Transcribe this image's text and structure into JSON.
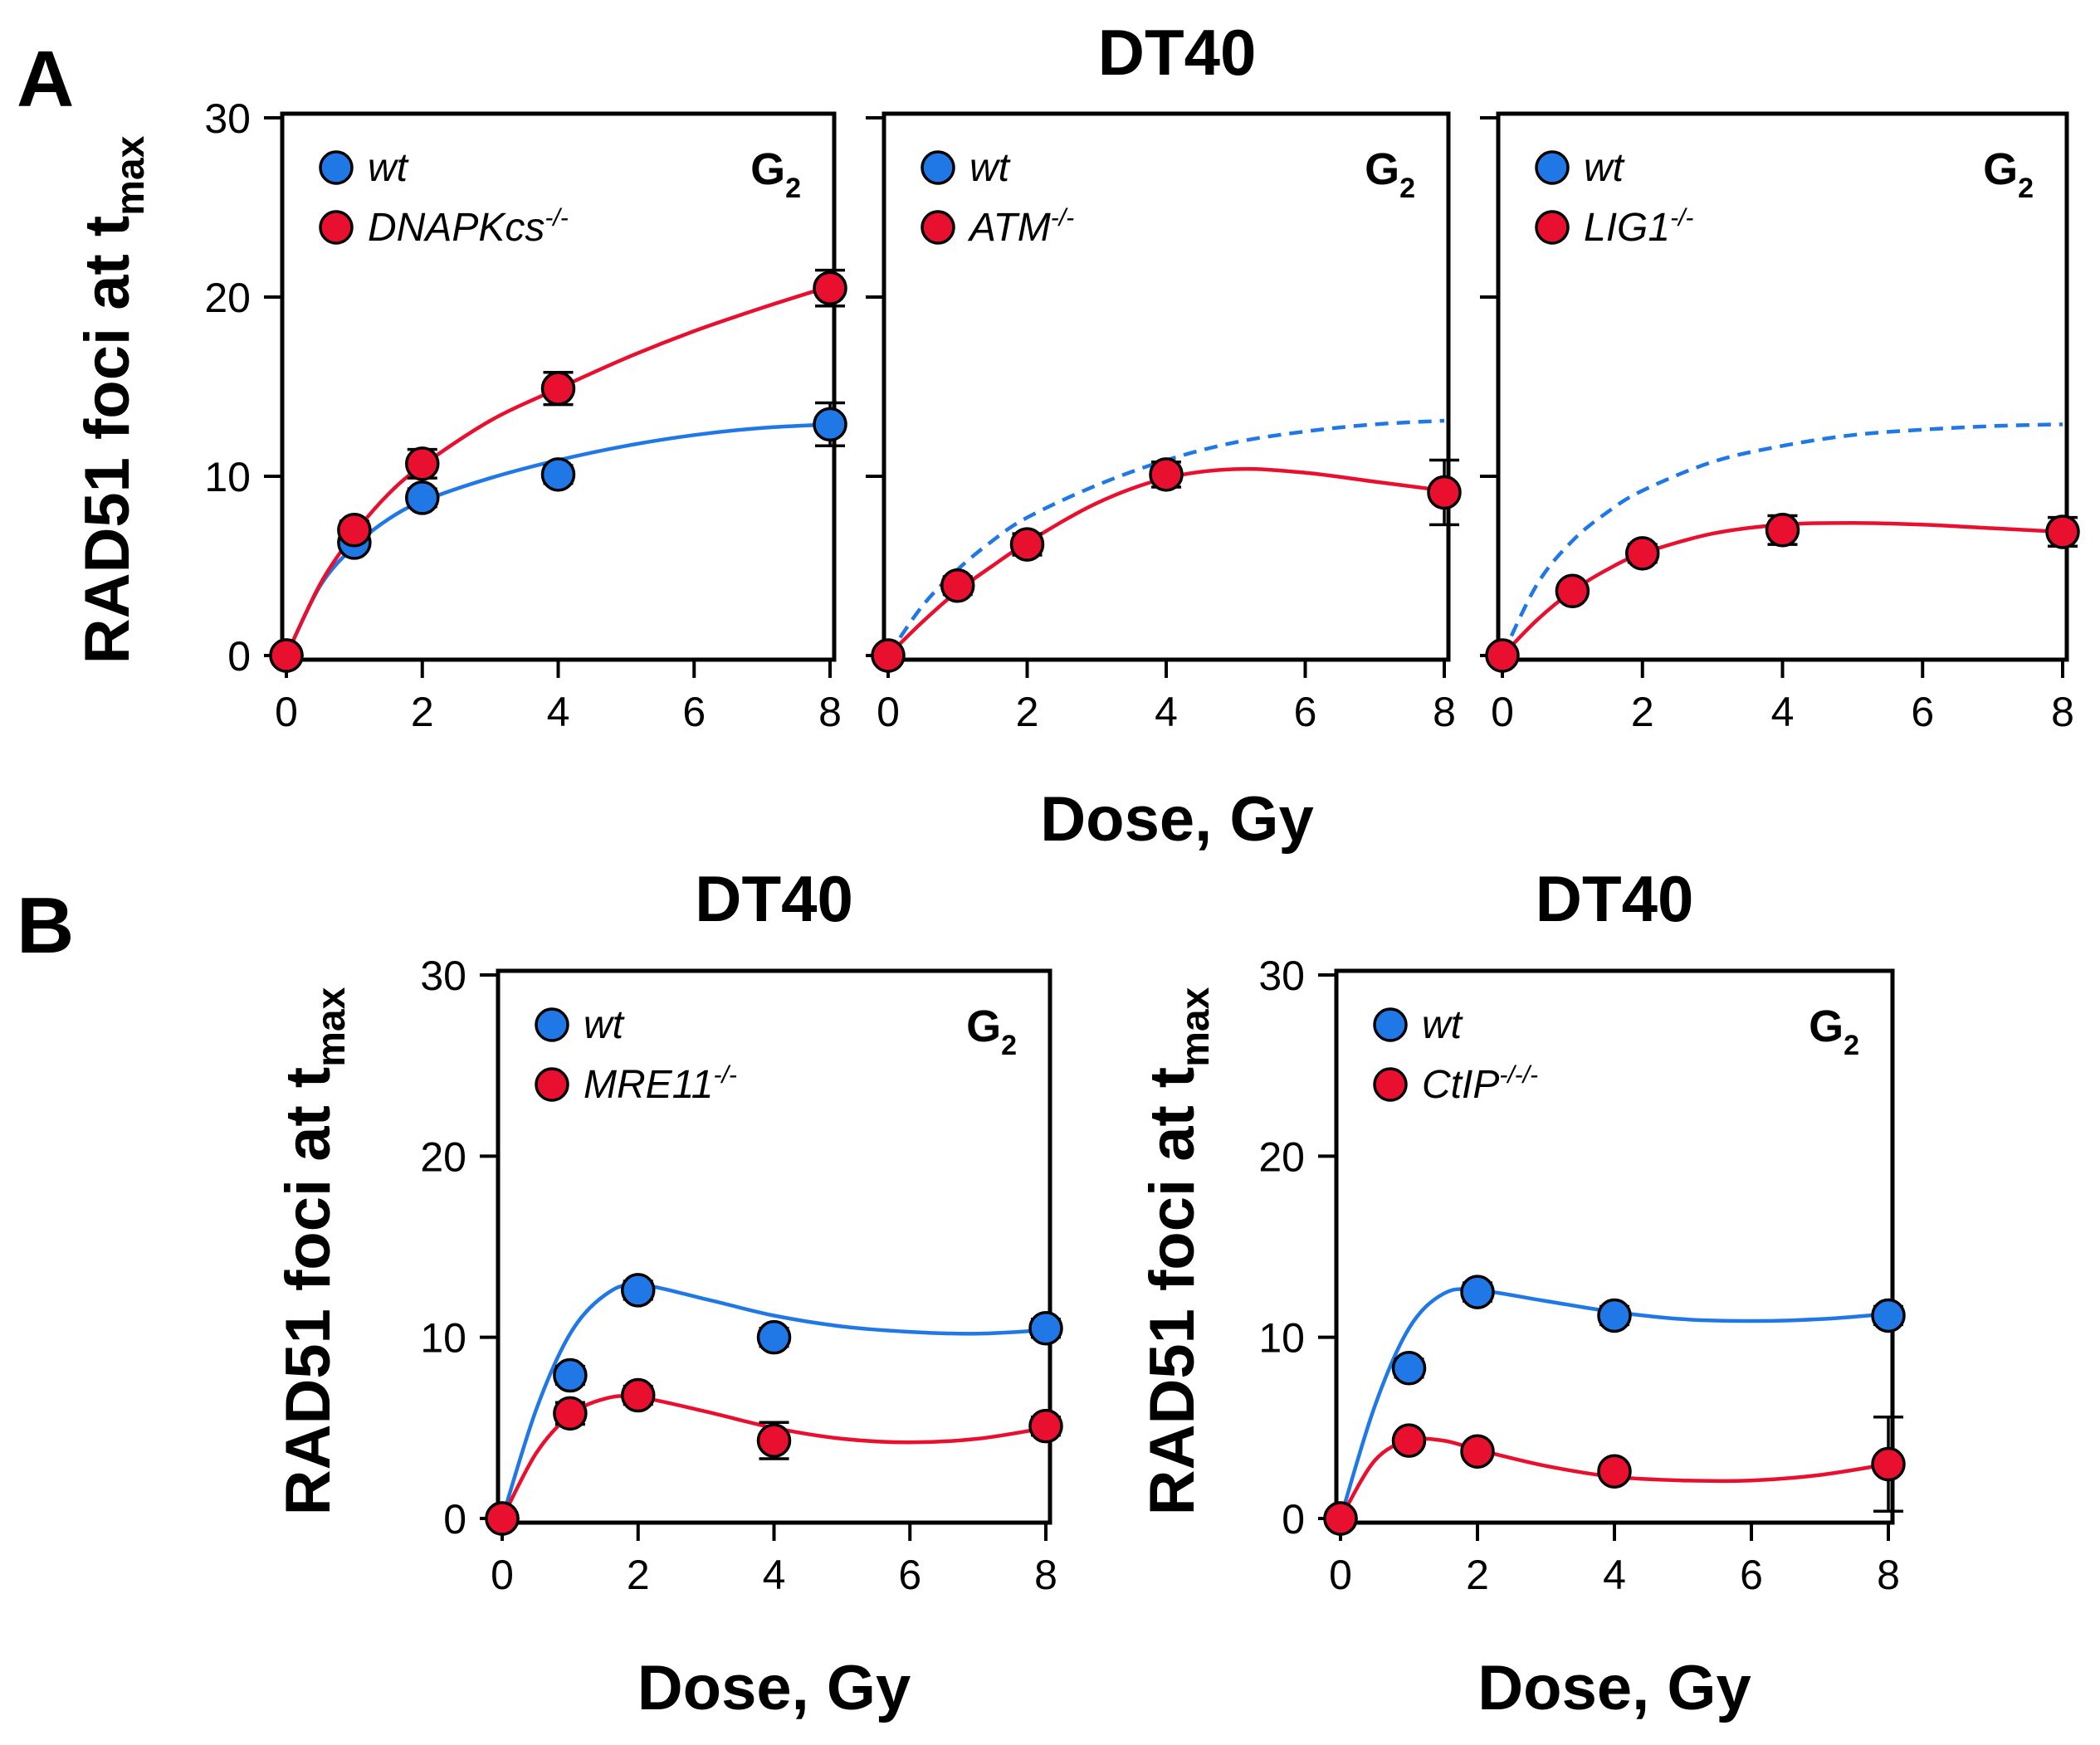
{
  "figure": {
    "panel_A_letter": "A",
    "panel_B_letter": "B",
    "panel_A_title": "DT40",
    "panel_A_xlabel": "Dose, Gy",
    "y_label_main": "RAD51 foci at t",
    "y_label_sub": "max",
    "x_ticks": [
      "0",
      "2",
      "4",
      "6",
      "8"
    ],
    "y_ticks": [
      "0",
      "10",
      "20",
      "30"
    ],
    "colors": {
      "wt": "#1f78e6",
      "mutant": "#e8102e",
      "axis": "#000000"
    }
  },
  "chart_data": [
    {
      "type": "scatter",
      "panel": "A",
      "title": "DT40",
      "phase": "G",
      "phase_sub": "2",
      "xlabel": "Dose, Gy",
      "ylabel": "RAD51 foci at t_max",
      "xlim": [
        0,
        8
      ],
      "ylim": [
        0,
        30
      ],
      "series": [
        {
          "name": "wt",
          "name_sup": "",
          "role": "wt",
          "x": [
            0,
            1,
            2,
            4,
            8
          ],
          "y": [
            0,
            6.3,
            8.8,
            10.1,
            12.9
          ],
          "err": [
            0,
            0.4,
            0.5,
            0.5,
            1.2
          ],
          "curve": [
            [
              0,
              0
            ],
            [
              0.5,
              3.9
            ],
            [
              1,
              6.1
            ],
            [
              1.5,
              7.6
            ],
            [
              2,
              8.6
            ],
            [
              3,
              9.9
            ],
            [
              4,
              10.9
            ],
            [
              5,
              11.7
            ],
            [
              6,
              12.3
            ],
            [
              7,
              12.7
            ],
            [
              8,
              12.9
            ]
          ],
          "dashed": false
        },
        {
          "name": "DNAPKcs",
          "name_sup": "-/-",
          "role": "mutant",
          "x": [
            0,
            1,
            2,
            4,
            8
          ],
          "y": [
            0,
            7.0,
            10.7,
            14.9,
            20.5
          ],
          "err": [
            0,
            0.5,
            0.8,
            0.9,
            1.0
          ],
          "curve": [
            [
              0,
              0
            ],
            [
              0.5,
              4.0
            ],
            [
              1,
              6.8
            ],
            [
              1.5,
              9.0
            ],
            [
              2,
              10.6
            ],
            [
              3,
              13.1
            ],
            [
              4,
              14.9
            ],
            [
              5,
              16.6
            ],
            [
              6,
              18.1
            ],
            [
              7,
              19.4
            ],
            [
              8,
              20.6
            ]
          ],
          "dashed": false
        }
      ]
    },
    {
      "type": "scatter",
      "panel": "A",
      "phase": "G",
      "phase_sub": "2",
      "xlim": [
        0,
        8
      ],
      "ylim": [
        0,
        30
      ],
      "series": [
        {
          "name": "wt",
          "name_sup": "",
          "role": "wt",
          "x": [],
          "y": [],
          "err": [],
          "curve": [
            [
              0,
              0
            ],
            [
              0.5,
              2.8
            ],
            [
              1,
              4.8
            ],
            [
              1.5,
              6.4
            ],
            [
              2,
              7.7
            ],
            [
              3,
              9.5
            ],
            [
              4,
              10.9
            ],
            [
              5,
              11.9
            ],
            [
              6,
              12.5
            ],
            [
              7,
              12.9
            ],
            [
              8,
              13.1
            ]
          ],
          "dashed": true
        },
        {
          "name": "ATM",
          "name_sup": "-/-",
          "role": "mutant",
          "x": [
            0,
            1,
            2,
            4,
            8
          ],
          "y": [
            0,
            3.9,
            6.2,
            10.1,
            9.1
          ],
          "err": [
            0,
            0.5,
            0.6,
            0.7,
            1.8
          ],
          "curve": [
            [
              0,
              0
            ],
            [
              0.5,
              1.9
            ],
            [
              1,
              3.6
            ],
            [
              1.5,
              5.0
            ],
            [
              2,
              6.3
            ],
            [
              3,
              8.5
            ],
            [
              4,
              9.9
            ],
            [
              5,
              10.4
            ],
            [
              6,
              10.2
            ],
            [
              7,
              9.7
            ],
            [
              8,
              9.2
            ]
          ],
          "dashed": false
        }
      ]
    },
    {
      "type": "scatter",
      "panel": "A",
      "phase": "G",
      "phase_sub": "2",
      "xlim": [
        0,
        8
      ],
      "ylim": [
        0,
        30
      ],
      "series": [
        {
          "name": "wt",
          "name_sup": "",
          "role": "wt",
          "x": [],
          "y": [],
          "err": [],
          "curve": [
            [
              0,
              0
            ],
            [
              0.5,
              4.0
            ],
            [
              1,
              6.4
            ],
            [
              1.5,
              8.0
            ],
            [
              2,
              9.2
            ],
            [
              3,
              10.8
            ],
            [
              4,
              11.7
            ],
            [
              5,
              12.3
            ],
            [
              6,
              12.6
            ],
            [
              7,
              12.8
            ],
            [
              8,
              12.9
            ]
          ],
          "dashed": true
        },
        {
          "name": "LIG1",
          "name_sup": "-/-",
          "role": "mutant",
          "x": [
            0,
            1,
            2,
            4,
            8
          ],
          "y": [
            0,
            3.6,
            5.7,
            7.0,
            6.9
          ],
          "err": [
            0,
            0.4,
            0.5,
            0.8,
            0.8
          ],
          "curve": [
            [
              0,
              0
            ],
            [
              0.5,
              2.0
            ],
            [
              1,
              3.6
            ],
            [
              1.5,
              4.8
            ],
            [
              2,
              5.7
            ],
            [
              3,
              6.8
            ],
            [
              4,
              7.3
            ],
            [
              5,
              7.4
            ],
            [
              6,
              7.3
            ],
            [
              7,
              7.1
            ],
            [
              8,
              6.9
            ]
          ],
          "dashed": false
        }
      ]
    },
    {
      "type": "scatter",
      "panel": "B",
      "title": "DT40",
      "phase": "G",
      "phase_sub": "2",
      "xlabel": "Dose, Gy",
      "ylabel": "RAD51 foci at t_max",
      "xlim": [
        0,
        8
      ],
      "ylim": [
        0,
        30
      ],
      "series": [
        {
          "name": "wt",
          "name_sup": "",
          "role": "wt",
          "x": [
            0,
            1,
            2,
            4,
            8
          ],
          "y": [
            0,
            7.9,
            12.6,
            10.0,
            10.5
          ],
          "err": [
            0,
            0.5,
            0.5,
            0.5,
            0.5
          ],
          "curve": [
            [
              0,
              0
            ],
            [
              0.5,
              6.0
            ],
            [
              1,
              10.2
            ],
            [
              1.5,
              12.3
            ],
            [
              2,
              12.9
            ],
            [
              3,
              12.1
            ],
            [
              4,
              11.2
            ],
            [
              5,
              10.6
            ],
            [
              6,
              10.3
            ],
            [
              7,
              10.2
            ],
            [
              8,
              10.4
            ]
          ],
          "dashed": false
        },
        {
          "name": "MRE11",
          "name_sup": "-/-",
          "role": "mutant",
          "x": [
            0,
            1,
            2,
            4,
            8
          ],
          "y": [
            0,
            5.8,
            6.8,
            4.3,
            5.1
          ],
          "err": [
            0,
            0.6,
            0.5,
            1.0,
            0.5
          ],
          "curve": [
            [
              0,
              0
            ],
            [
              0.5,
              3.6
            ],
            [
              1,
              5.7
            ],
            [
              1.5,
              6.6
            ],
            [
              2,
              6.7
            ],
            [
              3,
              5.9
            ],
            [
              4,
              5.0
            ],
            [
              5,
              4.4
            ],
            [
              6,
              4.2
            ],
            [
              7,
              4.4
            ],
            [
              8,
              5.0
            ]
          ],
          "dashed": false
        }
      ]
    },
    {
      "type": "scatter",
      "panel": "B",
      "title": "DT40",
      "phase": "G",
      "phase_sub": "2",
      "xlabel": "Dose, Gy",
      "ylabel": "RAD51 foci at t_max",
      "xlim": [
        0,
        8
      ],
      "ylim": [
        0,
        30
      ],
      "series": [
        {
          "name": "wt",
          "name_sup": "",
          "role": "wt",
          "x": [
            0,
            1,
            2,
            4,
            8
          ],
          "y": [
            0,
            8.3,
            12.5,
            11.2,
            11.2
          ],
          "err": [
            0,
            0.5,
            0.5,
            0.5,
            0.5
          ],
          "curve": [
            [
              0,
              0
            ],
            [
              0.5,
              6.2
            ],
            [
              1,
              10.5
            ],
            [
              1.5,
              12.4
            ],
            [
              2,
              12.6
            ],
            [
              3,
              12.0
            ],
            [
              4,
              11.4
            ],
            [
              5,
              11.0
            ],
            [
              6,
              10.9
            ],
            [
              7,
              11.0
            ],
            [
              8,
              11.3
            ]
          ],
          "dashed": false
        },
        {
          "name": "CtIP",
          "name_sup": "-/-/-",
          "role": "mutant",
          "x": [
            0,
            1,
            2,
            4,
            8
          ],
          "y": [
            0,
            4.3,
            3.7,
            2.6,
            3.0
          ],
          "err": [
            0,
            0.4,
            0.4,
            0.4,
            2.6
          ],
          "curve": [
            [
              0,
              0
            ],
            [
              0.5,
              3.2
            ],
            [
              1,
              4.3
            ],
            [
              1.5,
              4.3
            ],
            [
              2,
              3.8
            ],
            [
              3,
              2.9
            ],
            [
              4,
              2.3
            ],
            [
              5,
              2.1
            ],
            [
              6,
              2.1
            ],
            [
              7,
              2.4
            ],
            [
              8,
              3.0
            ]
          ],
          "dashed": false
        }
      ]
    }
  ]
}
